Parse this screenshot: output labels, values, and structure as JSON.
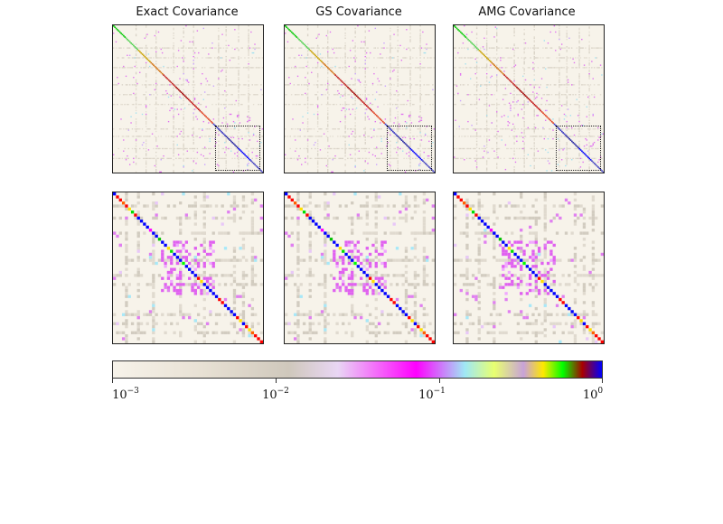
{
  "chart_data": [
    {
      "type": "heatmap",
      "title": "Exact Covariance",
      "matrix_size": 120,
      "scale": "log",
      "zoom_region": {
        "row_start": 70,
        "row_end": 120,
        "col_start": 70,
        "col_end": 120
      }
    },
    {
      "type": "heatmap",
      "title": "GS Covariance",
      "matrix_size": 120,
      "scale": "log",
      "zoom_region": {
        "row_start": 70,
        "row_end": 120,
        "col_start": 70,
        "col_end": 120
      }
    },
    {
      "type": "heatmap",
      "title": "AMG Covariance",
      "matrix_size": 120,
      "scale": "log",
      "zoom_region": {
        "row_start": 70,
        "row_end": 120,
        "col_start": 70,
        "col_end": 120
      }
    },
    {
      "type": "heatmap",
      "title": "",
      "matrix_size": 50,
      "scale": "log",
      "zoom_of": "Exact Covariance"
    },
    {
      "type": "heatmap",
      "title": "",
      "matrix_size": 50,
      "scale": "log",
      "zoom_of": "GS Covariance"
    },
    {
      "type": "heatmap",
      "title": "",
      "matrix_size": 50,
      "scale": "log",
      "zoom_of": "AMG Covariance"
    }
  ],
  "colorbar": {
    "scale": "log",
    "range": [
      0.001,
      1
    ],
    "tick_labels": [
      {
        "base": "10",
        "exp": "−3",
        "value": 0.001
      },
      {
        "base": "10",
        "exp": "−2",
        "value": 0.01
      },
      {
        "base": "10",
        "exp": "−1",
        "value": 0.1
      },
      {
        "base": "10",
        "exp": "0",
        "value": 1
      }
    ],
    "colors": [
      "#f7f3ea",
      "#e8e1d4",
      "#cfc8bc",
      "#e9d6f4",
      "#ff00ff",
      "#9fe8f5",
      "#e8ff70",
      "#c8a2d8",
      "#ffe800",
      "#00ff00",
      "#a80000",
      "#0000ff"
    ]
  }
}
